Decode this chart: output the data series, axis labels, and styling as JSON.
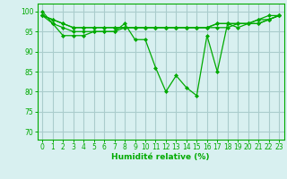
{
  "title": "",
  "xlabel": "Humidité relative (%)",
  "ylabel": "",
  "bg_color": "#d8f0f0",
  "grid_color": "#aacccc",
  "line_color": "#00aa00",
  "marker_color": "#00aa00",
  "xlim": [
    -0.5,
    23.5
  ],
  "ylim": [
    68,
    102
  ],
  "yticks": [
    70,
    75,
    80,
    85,
    90,
    95,
    100
  ],
  "xticks": [
    0,
    1,
    2,
    3,
    4,
    5,
    6,
    7,
    8,
    9,
    10,
    11,
    12,
    13,
    14,
    15,
    16,
    17,
    18,
    19,
    20,
    21,
    22,
    23
  ],
  "series": [
    [
      100,
      97,
      94,
      94,
      94,
      95,
      95,
      95,
      97,
      93,
      93,
      86,
      80,
      84,
      81,
      79,
      94,
      85,
      97,
      96,
      97,
      98,
      99,
      99
    ],
    [
      99,
      97,
      96,
      95,
      95,
      95,
      95,
      95,
      96,
      96,
      96,
      96,
      96,
      96,
      96,
      96,
      96,
      97,
      97,
      97,
      97,
      97,
      98,
      99
    ],
    [
      99,
      98,
      97,
      96,
      96,
      96,
      96,
      96,
      96,
      96,
      96,
      96,
      96,
      96,
      96,
      96,
      96,
      97,
      97,
      97,
      97,
      98,
      98,
      99
    ],
    [
      99,
      98,
      97,
      96,
      96,
      96,
      96,
      96,
      96,
      96,
      96,
      96,
      96,
      96,
      96,
      96,
      96,
      96,
      96,
      97,
      97,
      97,
      98,
      99
    ]
  ]
}
